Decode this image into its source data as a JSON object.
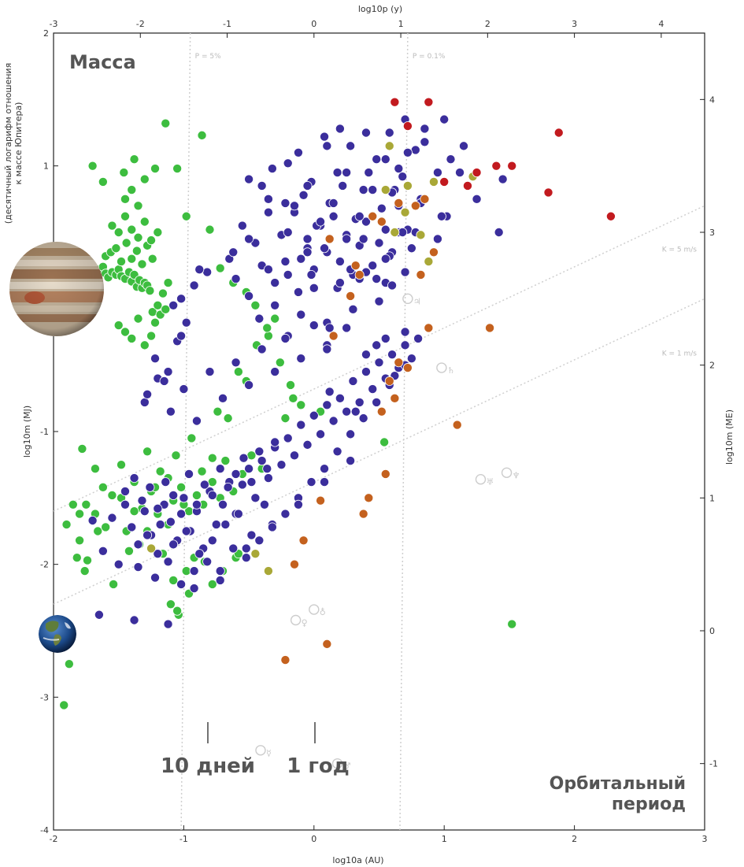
{
  "chart_data": {
    "type": "scatter",
    "title": "Масса",
    "xlabel": "log10a (AU)",
    "ylabel": "log10m (MJ)",
    "top_axis_label": "log10p (y)",
    "right_axis_label": "log10m (ME)",
    "left_axis_note": [
      "(десятичный логарифм отношения",
      "к массе Юпитера)"
    ],
    "xlim": [
      -2,
      3
    ],
    "ylim": [
      -4,
      2
    ],
    "x_ticks": [
      -2,
      -1,
      0,
      1,
      2,
      3
    ],
    "y_ticks": [
      -4,
      -3,
      -2,
      -1,
      0,
      1,
      2
    ],
    "top_ticks": [
      -3,
      -2,
      -1,
      0,
      1,
      2,
      3,
      4
    ],
    "right_ticks": [
      -1,
      0,
      1,
      2,
      3,
      4
    ],
    "guide_lines": [
      {
        "label": "P = 5%",
        "x_at_top": -0.95,
        "x_at_bottom": -1.02
      },
      {
        "label": "P = 0.1%",
        "x_at_top": 0.72,
        "x_at_bottom": 0.66
      },
      {
        "label": "K = 5 m/s",
        "p0": [
          -2,
          -1.6
        ],
        "p1": [
          3,
          0.7
        ]
      },
      {
        "label": "K = 1 m/s",
        "p0": [
          -2,
          -2.3
        ],
        "p1": [
          3,
          0.0
        ]
      }
    ],
    "annotations": {
      "corner_label": [
        "Орбитальный",
        "период"
      ],
      "marker_10_days": "10 дней",
      "marker_1_year": "1 год",
      "marker_10_days_x": -0.82,
      "marker_1_year_x": 0.0
    },
    "series_colors": {
      "blue": "#3b2e9c",
      "green": "#3dbd3f",
      "orange": "#c4611e",
      "olive": "#a9a837",
      "red": "#c21a1f"
    },
    "solar_system": [
      {
        "symbol": "☿",
        "x": -0.41,
        "y": -3.4
      },
      {
        "symbol": "♀",
        "x": -0.14,
        "y": -2.42
      },
      {
        "symbol": "♁",
        "x": 0.0,
        "y": -2.34
      },
      {
        "symbol": "♂",
        "x": 0.18,
        "y": -3.5
      },
      {
        "symbol": "♃",
        "x": 0.72,
        "y": 0.0
      },
      {
        "symbol": "♄",
        "x": 0.98,
        "y": -0.52
      },
      {
        "symbol": "♅",
        "x": 1.28,
        "y": -1.36
      },
      {
        "symbol": "♆",
        "x": 1.48,
        "y": -1.31
      }
    ],
    "series": [
      {
        "color": "green",
        "x": [
          -1.85,
          -1.78,
          -1.72,
          -1.7,
          -1.68,
          -1.65,
          -1.62,
          -1.6,
          -1.58,
          -1.55,
          -1.52,
          -1.5,
          -1.48,
          -1.45,
          -1.42,
          -1.4,
          -1.38,
          -1.36,
          -1.34,
          -1.32,
          -1.3,
          -1.28,
          -1.26,
          -1.24,
          -1.22,
          -1.2,
          -1.18,
          -1.16,
          -1.14,
          -1.12,
          -1.6,
          -1.56,
          -1.52,
          -1.48,
          -1.44,
          -1.4,
          -1.36,
          -1.32,
          -1.28,
          -1.24,
          -1.55,
          -1.5,
          -1.45,
          -1.4,
          -1.35,
          -1.3,
          -1.25,
          -1.2,
          -1.5,
          -1.45,
          -1.4,
          -1.35,
          -1.3,
          -1.25,
          -1.45,
          -1.4,
          -1.35,
          -1.3,
          -1.7,
          -1.62,
          -1.46,
          -1.38,
          -1.22,
          -1.14,
          -1.05,
          -0.98,
          -0.86,
          -0.8,
          -0.72,
          -0.62,
          -0.52,
          -0.45,
          -0.35,
          -0.26,
          -0.18,
          -0.1,
          -1.85,
          -1.8,
          -1.75,
          -1.62,
          -1.55,
          -1.48,
          -1.38,
          -1.32,
          -1.25,
          -1.2,
          -1.12,
          -1.08,
          -1.02,
          -0.96,
          -0.9,
          -0.85,
          -0.78,
          -0.72,
          -0.68,
          -0.62,
          -0.55,
          -0.48,
          -0.4,
          -1.9,
          -1.8,
          -1.74,
          -1.66,
          -1.42,
          -1.28,
          -1.16,
          -1.08,
          -0.98,
          -0.92,
          -0.84,
          -0.78,
          -0.7,
          -0.6,
          -1.1,
          -1.04,
          -0.96,
          -1.78,
          -1.68,
          -1.05,
          -0.58,
          0.05,
          0.54,
          1.52
        ],
        "y": [
          0.21,
          0.23,
          0.2,
          0.18,
          0.17,
          0.22,
          0.24,
          0.19,
          0.16,
          0.2,
          0.18,
          0.22,
          0.17,
          0.15,
          0.2,
          0.13,
          0.18,
          0.09,
          0.14,
          0.08,
          0.12,
          0.1,
          0.06,
          -0.1,
          -0.18,
          -0.05,
          -0.12,
          0.04,
          -0.08,
          0.12,
          0.32,
          0.35,
          0.38,
          0.28,
          0.42,
          0.3,
          0.36,
          0.26,
          0.4,
          0.3,
          0.55,
          0.5,
          0.62,
          0.52,
          0.46,
          0.58,
          0.44,
          0.5,
          -0.2,
          -0.25,
          -0.3,
          -0.15,
          -0.35,
          -0.28,
          0.75,
          0.82,
          0.7,
          0.9,
          1.0,
          0.88,
          0.95,
          1.05,
          0.98,
          1.32,
          0.98,
          0.62,
          1.23,
          0.52,
          0.23,
          0.12,
          0.05,
          -0.05,
          -0.28,
          -0.48,
          -0.65,
          -0.8,
          -1.55,
          -1.62,
          -1.55,
          -1.42,
          -1.48,
          -1.5,
          -1.38,
          -1.58,
          -1.45,
          -1.62,
          -1.35,
          -1.52,
          -1.42,
          -1.6,
          -1.48,
          -1.55,
          -1.38,
          -1.5,
          -1.22,
          -1.45,
          -1.32,
          -1.18,
          -1.28,
          -1.7,
          -1.82,
          -1.97,
          -1.75,
          -1.9,
          -1.75,
          -1.92,
          -2.12,
          -2.05,
          -1.95,
          -1.98,
          -2.15,
          -2.05,
          -1.95,
          -2.3,
          -2.38,
          -2.22,
          -1.13,
          -1.28,
          -2.35,
          -1.92,
          -0.85,
          -1.08,
          -2.45
        ],
        "extra_x": [
          -1.95,
          -1.92,
          -1.88,
          -1.82,
          -1.76,
          -1.68,
          -1.6,
          -1.54,
          -1.48,
          -1.44,
          -1.38,
          -1.34,
          -1.28,
          -1.22,
          -1.18,
          -1.12,
          -1.06,
          -1.0,
          -0.94,
          -0.86,
          -0.78,
          -0.74,
          -0.66,
          -0.58,
          -0.52,
          -0.44,
          -0.36,
          -0.3,
          -0.22,
          -0.16
        ],
        "extra_y": [
          -2.62,
          -3.06,
          -2.75,
          -1.95,
          -2.05,
          -1.62,
          -1.72,
          -2.15,
          -1.25,
          -1.75,
          -1.6,
          -1.85,
          -1.15,
          -1.42,
          -1.3,
          -1.7,
          -1.18,
          -1.55,
          -1.05,
          -1.3,
          -1.2,
          -0.85,
          -0.9,
          -0.55,
          -0.62,
          -0.35,
          -0.22,
          -0.15,
          -0.9,
          -0.75
        ]
      },
      {
        "color": "blue",
        "x": [
          -1.7,
          -1.62,
          -1.55,
          -1.5,
          -1.45,
          -1.4,
          -1.35,
          -1.3,
          -1.25,
          -1.2,
          -1.15,
          -1.1,
          -1.05,
          -1.0,
          -0.95,
          -0.9,
          -0.85,
          -0.8,
          -0.75,
          -0.7,
          -0.65,
          -0.6,
          -0.55,
          -0.5,
          -0.45,
          -0.4,
          -0.35,
          -0.3,
          -0.25,
          -0.2,
          -0.15,
          -0.1,
          -0.05,
          0.0,
          0.05,
          0.1,
          0.15,
          0.2,
          0.25,
          0.3,
          0.35,
          0.4,
          0.45,
          0.5,
          0.55,
          0.6,
          0.65,
          0.7,
          0.75,
          0.8,
          -1.45,
          -1.38,
          -1.32,
          -1.26,
          -1.2,
          -1.14,
          -1.08,
          -1.02,
          -0.96,
          -0.9,
          -0.84,
          -0.78,
          -0.72,
          -0.66,
          -0.6,
          -0.54,
          -0.48,
          -0.42,
          -0.36,
          -0.3,
          -1.28,
          -1.18,
          -1.08,
          -0.98,
          -0.88,
          -0.78,
          -0.68,
          -0.58,
          -0.48,
          -0.38,
          -1.35,
          -1.22,
          -1.12,
          -1.02,
          -0.92,
          -0.82,
          -0.72,
          -0.62,
          -0.52,
          -0.42,
          -0.32,
          -0.22,
          -0.12,
          -0.02,
          0.08,
          0.18,
          0.28,
          0.38,
          0.48,
          0.58,
          -0.1,
          -0.05,
          0.0,
          0.05,
          0.1,
          0.15,
          0.2,
          0.25,
          0.3,
          0.35,
          0.4,
          0.45,
          0.5,
          0.55,
          0.6,
          0.65,
          0.7,
          0.75,
          -0.15,
          -0.08,
          0.02,
          0.12,
          0.22,
          0.32,
          0.42,
          0.52,
          0.62,
          0.72,
          0.82,
          0.92,
          1.02,
          1.12,
          1.25,
          1.45,
          -0.3,
          -0.22,
          -0.12,
          -0.02,
          0.08,
          0.18,
          0.28,
          0.38,
          0.48,
          0.58,
          0.68,
          -0.4,
          -0.32,
          -0.22,
          -0.12,
          -0.02,
          0.08,
          0.18,
          0.28,
          0.38,
          0.48,
          0.58,
          0.68,
          0.78,
          -0.55,
          -0.45,
          -0.35,
          -0.25,
          -0.15,
          -0.05,
          0.05,
          0.15,
          0.25,
          0.35,
          0.45,
          0.55,
          0.65,
          -0.6,
          -0.5,
          -0.4,
          -0.3,
          -0.2,
          -0.1,
          0.0,
          0.1,
          0.2,
          0.3,
          0.4,
          0.5,
          0.6,
          0.7,
          -0.5,
          -0.35,
          -0.2,
          -0.05,
          0.1,
          0.25,
          0.4,
          0.55,
          0.7,
          0.85,
          -0.65,
          -0.5,
          -0.35,
          -0.2,
          -0.05,
          0.1,
          0.25,
          0.4,
          0.55,
          0.7,
          -1.3,
          -1.2,
          -1.1,
          -1.0,
          -0.9,
          -0.8,
          -0.7,
          -0.6,
          -0.5,
          -0.4,
          -0.3,
          -0.2,
          -0.1,
          0.0,
          0.1,
          -1.65,
          -1.38,
          -1.12,
          -0.92,
          -0.72,
          -0.52,
          -0.32,
          -0.12,
          0.08,
          0.28,
          -1.02,
          -0.82,
          -0.62,
          -0.42,
          -0.22,
          0.12,
          0.32
        ],
        "y": [
          -1.67,
          -1.9,
          -1.65,
          -2.0,
          -1.55,
          -1.72,
          -1.85,
          -1.6,
          -1.78,
          -1.92,
          -1.55,
          -1.68,
          -1.82,
          -1.5,
          -1.75,
          -1.6,
          -1.88,
          -1.45,
          -1.7,
          -1.55,
          -1.38,
          -1.62,
          -1.4,
          -1.28,
          -1.5,
          -1.22,
          -1.35,
          -1.12,
          -1.25,
          -1.05,
          -1.18,
          -0.95,
          -1.1,
          -0.88,
          -1.02,
          -0.8,
          -0.92,
          -0.75,
          -0.85,
          -0.62,
          -0.78,
          -0.55,
          -0.68,
          -0.48,
          -0.6,
          -0.42,
          -0.52,
          -0.35,
          -0.45,
          -0.3,
          -1.45,
          -1.35,
          -1.52,
          -1.42,
          -1.58,
          -1.38,
          -1.48,
          -1.62,
          -1.32,
          -1.55,
          -1.4,
          -1.48,
          -1.28,
          -1.42,
          -1.32,
          -1.2,
          -1.38,
          -1.15,
          -1.28,
          -1.08,
          -1.78,
          -1.7,
          -1.85,
          -1.75,
          -1.92,
          -1.82,
          -1.7,
          -1.62,
          -1.78,
          -1.55,
          -2.02,
          -2.1,
          -1.98,
          -2.15,
          -2.05,
          -1.98,
          -2.12,
          -1.88,
          -1.95,
          -1.82,
          -1.7,
          -1.62,
          -1.5,
          -1.38,
          -1.28,
          -1.15,
          -1.02,
          -0.9,
          -0.78,
          -0.65,
          0.3,
          0.45,
          0.22,
          0.55,
          0.35,
          0.62,
          0.28,
          0.48,
          0.18,
          0.4,
          0.58,
          0.25,
          0.42,
          0.12,
          0.35,
          0.5,
          0.2,
          0.38,
          0.65,
          0.78,
          0.55,
          0.72,
          0.85,
          0.6,
          0.95,
          0.68,
          0.82,
          0.52,
          0.75,
          0.88,
          0.62,
          0.95,
          0.75,
          0.9,
          0.12,
          0.28,
          0.05,
          0.18,
          0.38,
          0.08,
          0.22,
          0.45,
          0.15,
          0.32,
          0.5,
          0.85,
          0.98,
          0.72,
          1.1,
          0.88,
          1.22,
          0.95,
          1.15,
          0.82,
          1.05,
          1.25,
          0.92,
          1.12,
          0.55,
          0.42,
          0.65,
          0.48,
          0.7,
          0.38,
          0.58,
          0.72,
          0.45,
          0.62,
          0.82,
          0.52,
          0.7,
          0.15,
          0.02,
          0.25,
          -0.05,
          0.18,
          -0.12,
          0.08,
          -0.18,
          0.12,
          -0.08,
          0.2,
          -0.02,
          0.1,
          -0.25,
          0.9,
          0.75,
          1.02,
          0.85,
          1.15,
          0.95,
          1.25,
          1.05,
          1.35,
          1.18,
          0.3,
          0.45,
          0.22,
          0.5,
          0.35,
          -0.35,
          -0.22,
          -0.42,
          -0.3,
          -0.5,
          -0.78,
          -0.6,
          -0.85,
          -0.68,
          -0.92,
          -0.55,
          -0.75,
          -0.48,
          -0.65,
          -0.38,
          -0.55,
          -0.28,
          -0.45,
          -0.2,
          -0.38,
          -2.38,
          -2.42,
          -2.45,
          -2.18,
          -2.05,
          -1.88,
          -1.72,
          -1.55,
          -1.38,
          -1.22,
          0.0,
          0.2,
          0.35,
          -0.15,
          -0.3,
          -0.7,
          -0.85
        ],
        "extra_x": [
          -1.28,
          -1.12,
          -1.22,
          -1.05,
          -1.15,
          -0.98,
          -1.08,
          -0.92,
          -1.02,
          -0.88,
          0.95,
          0.78,
          0.82,
          0.6,
          0.65,
          0.72,
          0.85,
          1.0,
          1.15,
          1.05,
          0.95,
          1.18,
          0.98,
          1.42,
          0.55,
          0.35,
          0.12,
          0.48,
          0.62,
          0.2
        ],
        "extra_y": [
          -0.72,
          -0.55,
          -0.45,
          -0.32,
          -0.62,
          -0.18,
          -0.05,
          0.1,
          -0.28,
          0.22,
          0.45,
          0.5,
          0.72,
          0.8,
          0.98,
          1.1,
          1.28,
          1.35,
          1.15,
          1.05,
          0.95,
          0.85,
          0.62,
          0.5,
          0.3,
          0.15,
          -0.22,
          -0.35,
          -0.58,
          1.28
        ]
      },
      {
        "color": "orange",
        "x": [
          0.45,
          0.52,
          0.65,
          0.78,
          0.82,
          0.88,
          0.72,
          0.62,
          0.55,
          0.42,
          0.38,
          0.05,
          -0.08,
          -0.15,
          0.1,
          -0.22,
          0.32,
          0.65,
          0.58,
          0.52,
          1.1,
          0.85,
          0.92,
          1.35,
          0.35,
          0.12,
          0.28,
          0.15
        ],
        "y": [
          0.62,
          0.58,
          0.72,
          0.7,
          0.18,
          -0.22,
          -0.52,
          -0.75,
          -1.32,
          -1.5,
          -1.62,
          -1.52,
          -1.82,
          -2.0,
          -2.6,
          -2.72,
          0.25,
          -0.48,
          -0.62,
          -0.85,
          -0.95,
          0.75,
          0.35,
          -0.22,
          0.18,
          0.45,
          0.02,
          -0.28
        ]
      },
      {
        "color": "olive",
        "x": [
          0.58,
          0.72,
          0.82,
          0.88,
          0.7,
          0.62,
          0.92,
          1.22,
          -1.25,
          -0.45,
          -0.35,
          0.55
        ],
        "y": [
          1.15,
          0.85,
          0.48,
          0.28,
          0.65,
          0.5,
          0.88,
          0.92,
          -1.88,
          -1.92,
          -2.05,
          0.82
        ],
        "extra_x": [],
        "extra_y": []
      },
      {
        "color": "red",
        "x": [
          0.62,
          0.88,
          0.72,
          1.0,
          1.25,
          1.4,
          1.52,
          1.88,
          1.8,
          2.28
        ],
        "y": [
          1.48,
          1.48,
          1.3,
          0.88,
          0.95,
          1.0,
          1.0,
          1.25,
          0.8,
          0.62
        ],
        "extra_x": [
          1.18
        ],
        "extra_y": [
          0.85
        ]
      }
    ]
  }
}
